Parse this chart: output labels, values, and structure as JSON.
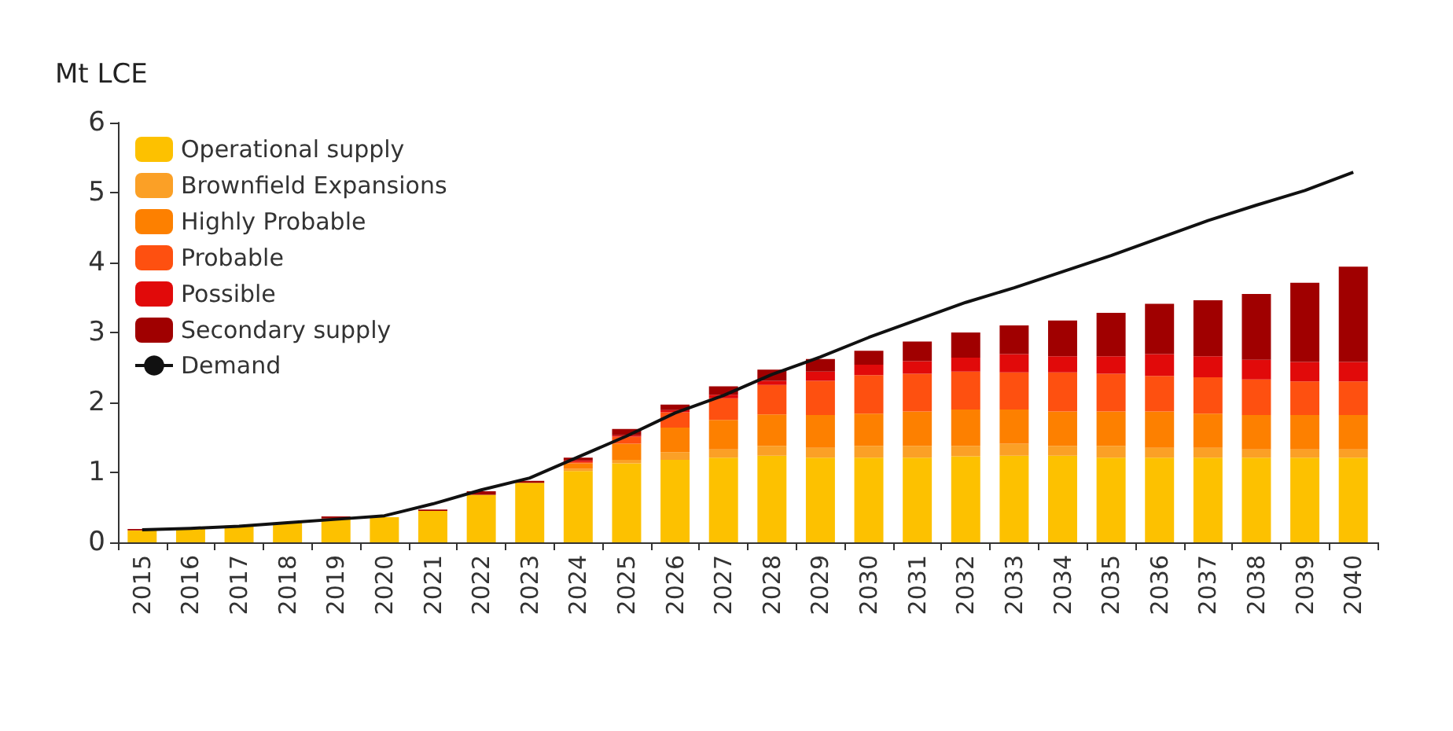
{
  "chart_data": {
    "type": "bar",
    "ylabel": "Mt LCE",
    "stacked": true,
    "legend": "top left",
    "grid": false,
    "categories": [
      "2015",
      "2016",
      "2017",
      "2018",
      "2019",
      "2020",
      "2021",
      "2022",
      "2023",
      "2024",
      "2025",
      "2026",
      "2027",
      "2028",
      "2029",
      "2030",
      "2031",
      "2032",
      "2033",
      "2034",
      "2035",
      "2036",
      "2037",
      "2038",
      "2039",
      "2040"
    ],
    "ylim": [
      0,
      6
    ],
    "yticks": [
      0,
      1,
      2,
      3,
      4,
      5,
      6
    ],
    "series": [
      {
        "name": "Operational supply",
        "color": "#fdc100",
        "values": [
          0.17,
          0.2,
          0.24,
          0.28,
          0.34,
          0.36,
          0.45,
          0.68,
          0.85,
          1.02,
          1.13,
          1.18,
          1.21,
          1.24,
          1.21,
          1.21,
          1.21,
          1.23,
          1.24,
          1.24,
          1.21,
          1.21,
          1.21,
          1.21,
          1.21,
          1.21
        ]
      },
      {
        "name": "Brownfield Expansions",
        "color": "#fba026",
        "values": [
          0,
          0,
          0,
          0,
          0,
          0,
          0,
          0,
          0,
          0.03,
          0.05,
          0.11,
          0.12,
          0.14,
          0.14,
          0.17,
          0.17,
          0.15,
          0.17,
          0.14,
          0.17,
          0.14,
          0.14,
          0.12,
          0.12,
          0.12
        ]
      },
      {
        "name": "Highly Probable",
        "color": "#fd8000",
        "values": [
          0,
          0,
          0,
          0,
          0,
          0,
          0,
          0,
          0,
          0.08,
          0.23,
          0.35,
          0.42,
          0.45,
          0.47,
          0.46,
          0.49,
          0.52,
          0.49,
          0.49,
          0.49,
          0.52,
          0.49,
          0.49,
          0.49,
          0.49
        ]
      },
      {
        "name": "Probable",
        "color": "#fe5010",
        "values": [
          0,
          0,
          0,
          0,
          0,
          0,
          0,
          0,
          0,
          0.02,
          0.1,
          0.22,
          0.31,
          0.42,
          0.49,
          0.55,
          0.54,
          0.54,
          0.53,
          0.56,
          0.54,
          0.51,
          0.52,
          0.51,
          0.48,
          0.48
        ]
      },
      {
        "name": "Possible",
        "color": "#e10a0a",
        "values": [
          0,
          0,
          0,
          0,
          0,
          0,
          0,
          0,
          0,
          0.02,
          0.02,
          0.03,
          0.05,
          0.06,
          0.13,
          0.15,
          0.18,
          0.2,
          0.26,
          0.23,
          0.25,
          0.31,
          0.3,
          0.28,
          0.28,
          0.28
        ]
      },
      {
        "name": "Secondary supply",
        "color": "#a00000",
        "values": [
          0.02,
          null,
          null,
          null,
          0.03,
          null,
          0.02,
          0.05,
          0.03,
          0.04,
          0.09,
          0.08,
          0.12,
          0.16,
          0.18,
          0.2,
          0.28,
          0.36,
          0.41,
          0.51,
          0.62,
          0.72,
          0.8,
          0.94,
          1.13,
          1.36
        ]
      },
      {
        "name": "Demand",
        "type": "line",
        "color": "#111111",
        "marker": "none",
        "line_style": "solid",
        "values": [
          0.18,
          0.2,
          0.23,
          0.28,
          0.33,
          0.38,
          0.55,
          0.75,
          0.92,
          1.22,
          1.52,
          1.85,
          2.1,
          2.4,
          2.65,
          2.93,
          3.18,
          3.43,
          3.64,
          3.87,
          4.1,
          4.35,
          4.6,
          4.82,
          5.03,
          5.29
        ]
      }
    ]
  }
}
